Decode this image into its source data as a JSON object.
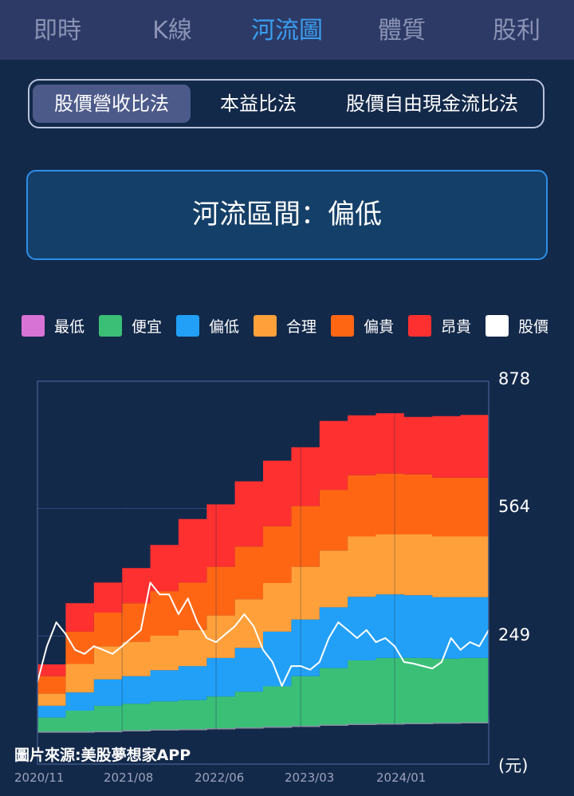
{
  "nav": {
    "tabs": [
      {
        "label": "即時",
        "active": false
      },
      {
        "label": "K線",
        "active": false
      },
      {
        "label": "河流圖",
        "active": true
      },
      {
        "label": "體質",
        "active": false
      },
      {
        "label": "股利",
        "active": false
      }
    ]
  },
  "methods": {
    "options": [
      {
        "label": "股價營收比法",
        "active": true
      },
      {
        "label": "本益比法",
        "active": false
      },
      {
        "label": "股價自由現金流比法",
        "active": false
      }
    ]
  },
  "status": {
    "text": "河流區間：偏低"
  },
  "credit": "圖片來源:美股夢想家APP",
  "colors": {
    "background": "#13294a",
    "accent": "#3a9ef0"
  },
  "chart_data": {
    "type": "area",
    "ylabel": "(元)",
    "yticks": [
      878,
      564,
      249
    ],
    "ylim": [
      -67,
      878
    ],
    "xticks": [
      "2020/11",
      "2021/08",
      "2022/06",
      "2023/03",
      "2024/01"
    ],
    "grid": true,
    "legend_placement": "top",
    "legend": [
      {
        "name": "最低",
        "color": "#d873d6"
      },
      {
        "name": "便宜",
        "color": "#3bbf77"
      },
      {
        "name": "偏低",
        "color": "#22a0f7"
      },
      {
        "name": "合理",
        "color": "#ffa03a"
      },
      {
        "name": "偏貴",
        "color": "#ff6614"
      },
      {
        "name": "昂貴",
        "color": "#ff3030"
      },
      {
        "name": "股價",
        "color": "#ffffff"
      }
    ],
    "band_dates": [
      "2020/11",
      "2021/02",
      "2021/05",
      "2021/08",
      "2021/11",
      "2022/02",
      "2022/05",
      "2022/08",
      "2022/11",
      "2023/02",
      "2023/05",
      "2023/08",
      "2023/11",
      "2024/02",
      "2024/05",
      "2024/08",
      "2024/11"
    ],
    "bands": [
      {
        "name": "最低",
        "values": [
          12,
          12,
          13,
          15,
          17,
          18,
          20,
          22,
          24,
          26,
          29,
          31,
          32,
          33,
          34,
          35,
          50
        ]
      },
      {
        "name": "便宜",
        "values": [
          48,
          65,
          77,
          82,
          88,
          91,
          100,
          112,
          125,
          150,
          170,
          189,
          195,
          195,
          193,
          195,
          209
        ]
      },
      {
        "name": "偏低",
        "values": [
          77,
          110,
          142,
          150,
          165,
          175,
          195,
          220,
          260,
          290,
          320,
          346,
          352,
          350,
          345,
          345,
          352
        ]
      },
      {
        "name": "合理",
        "values": [
          107,
          180,
          224,
          235,
          250,
          264,
          300,
          340,
          380,
          420,
          460,
          495,
          500,
          500,
          495,
          495,
          503
        ]
      },
      {
        "name": "偏貴",
        "values": [
          150,
          260,
          307,
          330,
          360,
          381,
          420,
          470,
          520,
          570,
          610,
          646,
          650,
          648,
          640,
          640,
          650
        ]
      },
      {
        "name": "昂貴",
        "values": [
          179,
          330,
          381,
          417,
          474,
          538,
          574,
          631,
          682,
          715,
          780,
          794,
          799,
          790,
          792,
          795,
          800
        ]
      }
    ],
    "price": {
      "name": "股價",
      "start": "2020/11",
      "interval": "month",
      "values": [
        136,
        224,
        283,
        254,
        215,
        205,
        224,
        215,
        205,
        224,
        244,
        264,
        381,
        352,
        352,
        303,
        342,
        283,
        244,
        234,
        254,
        273,
        303,
        273,
        215,
        185,
        126,
        175,
        175,
        166,
        185,
        244,
        283,
        264,
        244,
        264,
        234,
        244,
        224,
        185,
        181,
        175,
        169,
        185,
        244,
        215,
        234,
        224,
        264
      ]
    }
  }
}
